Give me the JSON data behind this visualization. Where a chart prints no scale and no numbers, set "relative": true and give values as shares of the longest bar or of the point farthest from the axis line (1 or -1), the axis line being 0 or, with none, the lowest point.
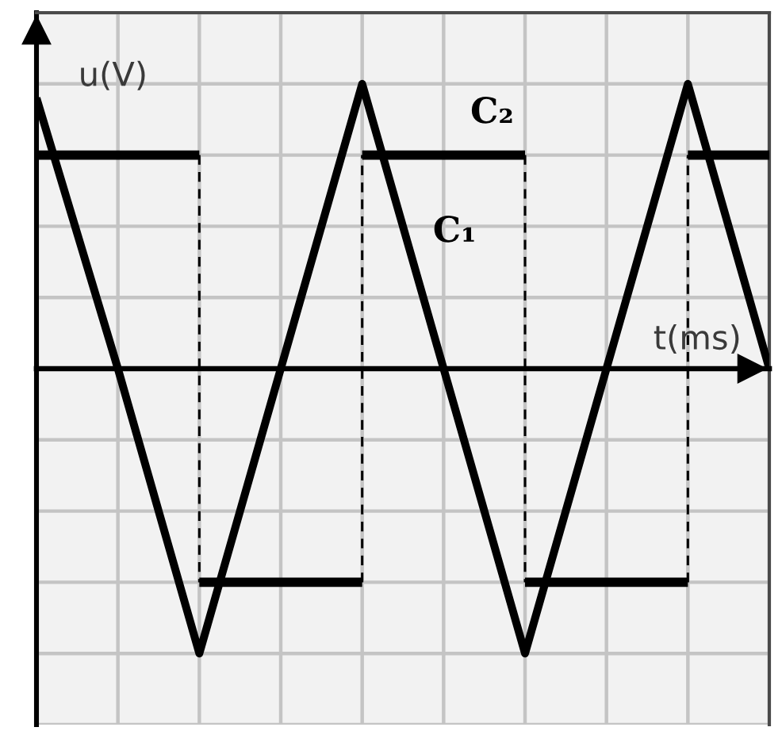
{
  "chart_data": {
    "type": "line",
    "xlabel": "t(ms)",
    "ylabel": "u(V)",
    "relative": true,
    "grid": true,
    "categories": [
      null,
      null,
      null,
      null,
      null,
      null,
      null,
      null,
      null,
      null
    ],
    "series": [
      {
        "name": "C₁",
        "color": "#000000",
        "values": [
          0.95,
          0,
          -1,
          0,
          1,
          0,
          -1,
          0,
          1,
          0
        ]
      },
      {
        "name": "C₂",
        "type": "step",
        "color": "#000000",
        "values": [
          0.75,
          0.75,
          -0.75,
          -0.75,
          0.75,
          0.75,
          -0.75,
          -0.75,
          0.75,
          0.75
        ]
      }
    ]
  }
}
